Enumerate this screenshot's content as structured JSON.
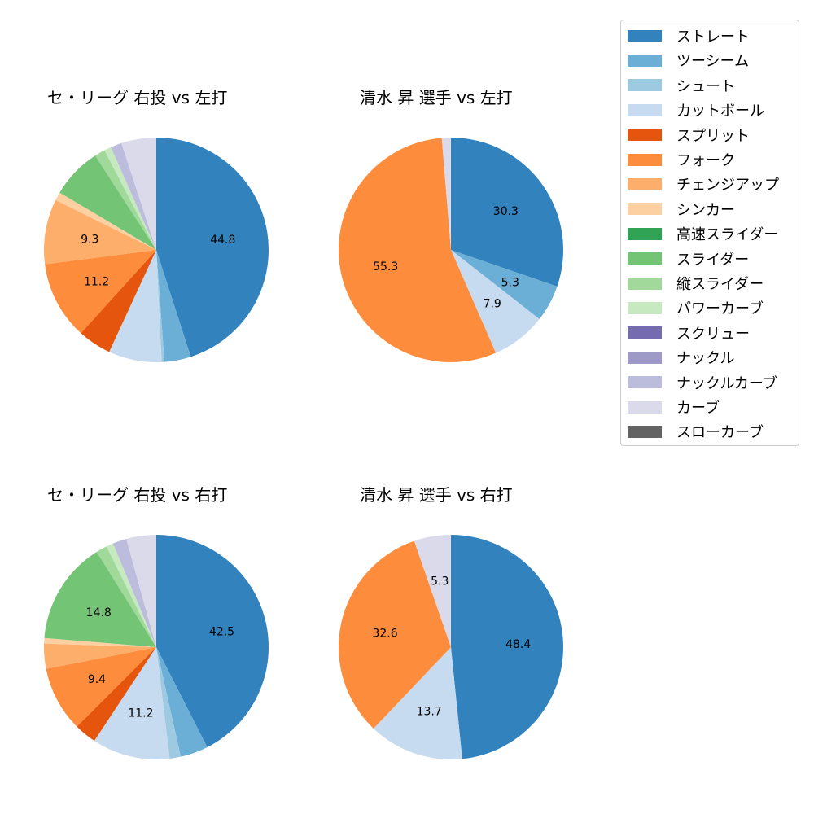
{
  "legend": {
    "items": [
      {
        "label": "ストレート",
        "color": "#3182bd"
      },
      {
        "label": "ツーシーム",
        "color": "#6baed6"
      },
      {
        "label": "シュート",
        "color": "#9ecae1"
      },
      {
        "label": "カットボール",
        "color": "#c6dbef"
      },
      {
        "label": "スプリット",
        "color": "#e6550d"
      },
      {
        "label": "フォーク",
        "color": "#fd8d3c"
      },
      {
        "label": "チェンジアップ",
        "color": "#fdae6b"
      },
      {
        "label": "シンカー",
        "color": "#fdd0a2"
      },
      {
        "label": "高速スライダー",
        "color": "#31a354"
      },
      {
        "label": "スライダー",
        "color": "#74c476"
      },
      {
        "label": "縦スライダー",
        "color": "#a1d99b"
      },
      {
        "label": "パワーカーブ",
        "color": "#c7e9c0"
      },
      {
        "label": "スクリュー",
        "color": "#756bb1"
      },
      {
        "label": "ナックル",
        "color": "#9e9ac8"
      },
      {
        "label": "ナックルカーブ",
        "color": "#bcbddc"
      },
      {
        "label": "カーブ",
        "color": "#dadaeb"
      },
      {
        "label": "スローカーブ",
        "color": "#636363"
      }
    ]
  },
  "chart_data": [
    {
      "type": "pie",
      "title": "セ・リーグ 右投 vs 左打",
      "start_angle": 90,
      "direction": "clockwise",
      "categories": [
        "ストレート",
        "ツーシーム",
        "シュート",
        "カットボール",
        "スプリット",
        "フォーク",
        "チェンジアップ",
        "シンカー",
        "スライダー",
        "縦スライダー",
        "パワーカーブ",
        "ナックルカーブ",
        "カーブ"
      ],
      "values": [
        44.8,
        3.8,
        0.4,
        7.6,
        4.8,
        11.2,
        9.3,
        1.2,
        7.3,
        1.5,
        1.0,
        1.6,
        5.0
      ],
      "labels_shown": [
        "44.8",
        "",
        "",
        "",
        "",
        "11.2",
        "9.3",
        "",
        "",
        "",
        "",
        "",
        ""
      ]
    },
    {
      "type": "pie",
      "title": "清水 昇 選手 vs 左打",
      "start_angle": 90,
      "direction": "clockwise",
      "categories": [
        "ストレート",
        "ツーシーム",
        "カットボール",
        "フォーク",
        "カーブ"
      ],
      "values": [
        30.3,
        5.3,
        7.9,
        55.3,
        1.3
      ],
      "labels_shown": [
        "30.3",
        "5.3",
        "7.9",
        "55.3",
        ""
      ]
    },
    {
      "type": "pie",
      "title": "セ・リーグ 右投 vs 右打",
      "start_angle": 90,
      "direction": "clockwise",
      "categories": [
        "ストレート",
        "ツーシーム",
        "シュート",
        "カットボール",
        "スプリット",
        "フォーク",
        "チェンジアップ",
        "シンカー",
        "スライダー",
        "縦スライダー",
        "パワーカーブ",
        "ナックルカーブ",
        "カーブ"
      ],
      "values": [
        42.5,
        4.0,
        1.6,
        11.2,
        3.2,
        9.4,
        3.6,
        0.8,
        14.8,
        1.6,
        1.0,
        2.0,
        4.3
      ],
      "labels_shown": [
        "42.5",
        "",
        "",
        "11.2",
        "",
        "9.4",
        "",
        "",
        "14.8",
        "",
        "",
        "",
        ""
      ]
    },
    {
      "type": "pie",
      "title": "清水 昇 選手 vs 右打",
      "start_angle": 90,
      "direction": "clockwise",
      "categories": [
        "ストレート",
        "カットボール",
        "フォーク",
        "カーブ"
      ],
      "values": [
        48.4,
        13.7,
        32.6,
        5.3
      ],
      "labels_shown": [
        "48.4",
        "13.7",
        "32.6",
        "5.3"
      ]
    }
  ]
}
